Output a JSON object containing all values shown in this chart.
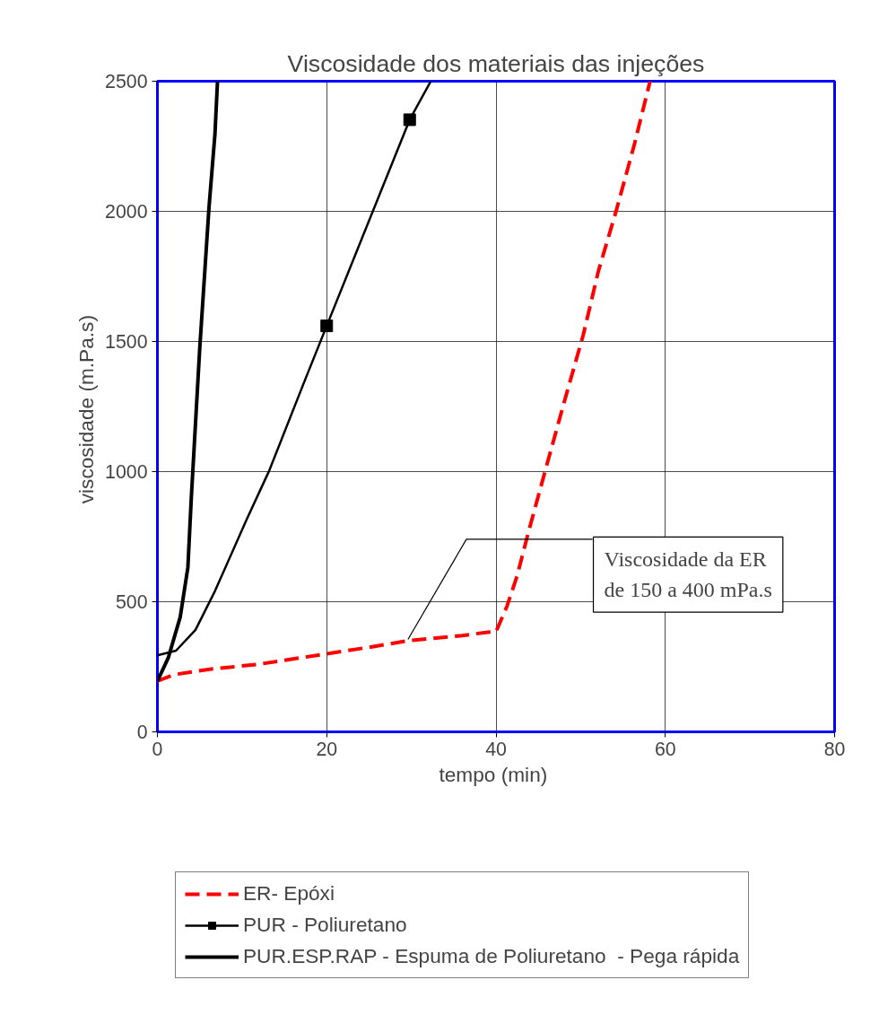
{
  "chart_data": {
    "type": "line",
    "title": "Viscosidade dos materiais das injeções",
    "xlabel": "tempo  (min)",
    "ylabel": "viscosidade  (m.Pa.s)",
    "xlim": [
      0,
      80
    ],
    "ylim": [
      0,
      2500
    ],
    "xticks": [
      0,
      20,
      40,
      60,
      80
    ],
    "yticks": [
      0,
      500,
      1000,
      1500,
      2000,
      2500
    ],
    "grid": true,
    "legend": "bottom",
    "series": [
      {
        "name": "ER- Epóxi",
        "color": "#ff0000",
        "line_style": "dashed",
        "x": [
          0,
          2,
          6,
          12,
          17,
          20,
          25,
          29.8,
          36,
          39,
          40,
          41.3,
          42.5,
          43.8,
          46.1,
          48.2,
          50.3,
          52.1,
          54.2,
          56.4,
          58.2
        ],
        "values": [
          195,
          220,
          240,
          260,
          285,
          300,
          325,
          351,
          370,
          383,
          385,
          483,
          600,
          764,
          1037,
          1284,
          1524,
          1771,
          2002,
          2264,
          2500
        ]
      },
      {
        "name": "PUR - Poliuretano",
        "color": "#000000",
        "x": [
          0,
          2.2,
          4.5,
          6.8,
          10.5,
          13.2,
          17.3,
          20,
          29.8,
          32.3
        ],
        "values": [
          294,
          312,
          392,
          541,
          813,
          1003,
          1341,
          1560,
          2352,
          2500
        ]
      },
      {
        "type": "scatter",
        "marker": "square",
        "color": "#000000",
        "x": [
          20,
          29.8
        ],
        "values": [
          1560,
          2352
        ]
      },
      {
        "name": "PUR.ESP.RAP - Espuma de Poliuretano  - Pega rápida",
        "color": "#000000",
        "x": [
          0,
          1.3,
          2.7,
          3.6,
          4,
          5,
          6.1,
          6.8,
          7.1
        ],
        "values": [
          195,
          286,
          442,
          632,
          897,
          1474,
          2018,
          2298,
          2500
        ]
      }
    ],
    "annotations": [
      {
        "text": "Viscosidade da ER\nde 150 a 400 mPa.s",
        "x": 29.6,
        "y": 355
      }
    ]
  }
}
